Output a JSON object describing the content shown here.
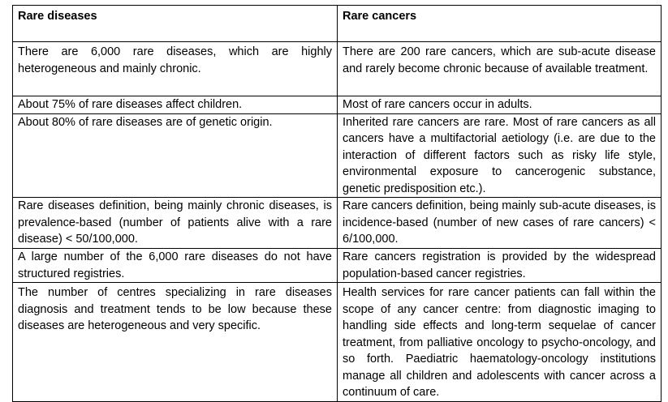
{
  "table": {
    "headers": [
      "Rare diseases",
      "Rare cancers"
    ],
    "rows": [
      [
        "There are 6,000 rare diseases, which are highly heterogeneous and mainly chronic.",
        "There are 200 rare cancers, which are sub-acute disease and rarely become chronic because of available treatment."
      ],
      [
        "About 75% of rare diseases affect children.",
        "Most of rare cancers occur in adults."
      ],
      [
        "About 80% of rare diseases are of genetic origin.",
        "Inherited rare cancers are rare. Most of rare cancers as all cancers have a multifactorial aetiology (i.e. are due to the interaction of different factors such as risky life style, environmental exposure to cancerogenic substance, genetic predisposition etc.)."
      ],
      [
        "Rare diseases definition, being mainly chronic diseases, is prevalence-based (number of patients alive with a rare disease) < 50/100,000.",
        "Rare cancers definition, being mainly sub-acute diseases, is incidence-based (number of new cases of rare cancers) < 6/100,000."
      ],
      [
        "A large number of the 6,000 rare diseases do not have structured registries.",
        "Rare cancers registration is provided by the widespread population-based cancer registries."
      ],
      [
        "The number of centres specializing in rare diseases diagnosis and treatment tends to be low because these diseases are heterogeneous and very specific.",
        "Health services for rare cancer patients can fall within the scope of any cancer centre: from diagnostic imaging to handling side effects and long-term sequelae of cancer treatment, from palliative oncology to psycho-oncology, and so forth. Paediatric haematology-oncology institutions manage all children and adolescents with cancer across a continuum of care."
      ]
    ]
  }
}
